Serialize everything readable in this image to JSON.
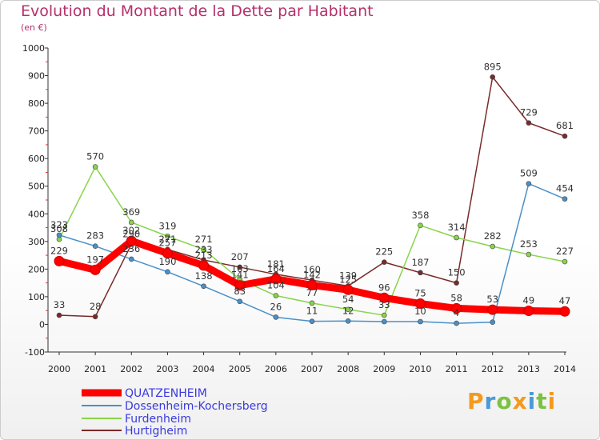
{
  "chart_data": {
    "type": "line",
    "title": "Evolution du Montant de la Dette par Habitant",
    "unit_label": "(en €)",
    "x": [
      "2000",
      "2001",
      "2002",
      "2003",
      "2004",
      "2005",
      "2006",
      "2007",
      "2008",
      "2009",
      "2010",
      "2011",
      "2012",
      "2013",
      "2014"
    ],
    "ylim": [
      -100,
      1000
    ],
    "yticks": [
      -100,
      0,
      100,
      200,
      300,
      400,
      500,
      600,
      700,
      800,
      900,
      1000
    ],
    "grid": false,
    "legend_position": "bottom-left",
    "series": [
      {
        "name": "QUATZENHEIM",
        "color": "#ff0000",
        "values": [
          229,
          197,
          302,
          257,
          213,
          141,
          164,
          142,
          125,
          96,
          75,
          58,
          53,
          49,
          47
        ],
        "labels": [
          "229",
          "197",
          "302",
          "257",
          "213",
          "141",
          "164",
          "142",
          "125",
          "96",
          "75",
          "58",
          "53",
          "49",
          "47"
        ]
      },
      {
        "name": "Dossenheim-Kochersberg",
        "color": "#4a90c8",
        "values": [
          323,
          283,
          236,
          190,
          138,
          83,
          26,
          11,
          12,
          10,
          10,
          4,
          8,
          509,
          454
        ],
        "labels": [
          "323",
          "283",
          "236",
          "190",
          "138",
          "83",
          "26",
          "11",
          "12",
          "",
          "10",
          "4",
          "",
          "509",
          "454"
        ]
      },
      {
        "name": "Furdenheim",
        "color": "#88d44a",
        "values": [
          308,
          570,
          369,
          319,
          271,
          163,
          104,
          77,
          54,
          33,
          358,
          314,
          282,
          253,
          227
        ],
        "labels": [
          "308",
          "570",
          "369",
          "319",
          "271",
          "163",
          "104",
          "77",
          "54",
          "33",
          "358",
          "314",
          "282",
          "253",
          "227"
        ]
      },
      {
        "name": "Hurtigheim",
        "color": "#7a2a2a",
        "values": [
          33,
          28,
          290,
          271,
          233,
          207,
          181,
          160,
          139,
          225,
          187,
          150,
          895,
          729,
          681
        ],
        "labels": [
          "33",
          "28",
          "290",
          "271",
          "233",
          "207",
          "181",
          "160",
          "139",
          "225",
          "187",
          "150",
          "895",
          "729",
          "681"
        ]
      }
    ]
  },
  "logo": {
    "letters": [
      "P",
      "r",
      "o",
      "x",
      "i",
      "t",
      "i"
    ],
    "colors": [
      "#f39a1e",
      "#4a9ad8",
      "#7cc242",
      "#f39a1e",
      "#4a9ad8",
      "#7cc242",
      "#f39a1e"
    ]
  }
}
